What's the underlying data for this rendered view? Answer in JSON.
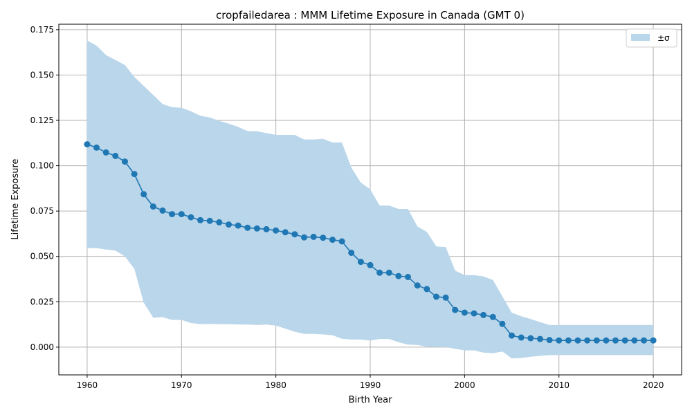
{
  "chart_data": {
    "type": "line",
    "title": "cropfailedarea : MMM Lifetime Exposure in Canada (GMT 0)",
    "xlabel": "Birth Year",
    "ylabel": "Lifetime Exposure",
    "xlim": [
      1957,
      2023
    ],
    "ylim": [
      -0.0153,
      0.178
    ],
    "x_ticks": [
      1960,
      1970,
      1980,
      1990,
      2000,
      2010,
      2020
    ],
    "x_tick_labels": [
      "1960",
      "1970",
      "1980",
      "1990",
      "2000",
      "2010",
      "2020"
    ],
    "y_ticks": [
      0.0,
      0.025,
      0.05,
      0.075,
      0.1,
      0.125,
      0.15,
      0.175
    ],
    "y_tick_labels": [
      "0.000",
      "0.025",
      "0.050",
      "0.075",
      "0.100",
      "0.125",
      "0.150",
      "0.175"
    ],
    "grid": true,
    "legend": {
      "placement": "top-right",
      "entries": [
        {
          "label": "±σ",
          "color": "#bad6ea"
        }
      ]
    },
    "colors": {
      "line": "#1f77b4",
      "band": "#bad6ea",
      "grid": "#b0b0b0"
    },
    "x": [
      1960,
      1961,
      1962,
      1963,
      1964,
      1965,
      1966,
      1967,
      1968,
      1969,
      1970,
      1971,
      1972,
      1973,
      1974,
      1975,
      1976,
      1977,
      1978,
      1979,
      1980,
      1981,
      1982,
      1983,
      1984,
      1985,
      1986,
      1987,
      1988,
      1989,
      1990,
      1991,
      1992,
      1993,
      1994,
      1995,
      1996,
      1997,
      1998,
      1999,
      2000,
      2001,
      2002,
      2003,
      2004,
      2005,
      2006,
      2007,
      2008,
      2009,
      2010,
      2011,
      2012,
      2013,
      2014,
      2015,
      2016,
      2017,
      2018,
      2019,
      2020
    ],
    "series": [
      {
        "values": [
          0.1118,
          0.11,
          0.1073,
          0.1054,
          0.1023,
          0.0954,
          0.0843,
          0.0775,
          0.0753,
          0.0733,
          0.0733,
          0.0716,
          0.07,
          0.0696,
          0.0688,
          0.0676,
          0.067,
          0.0658,
          0.0654,
          0.065,
          0.0643,
          0.0633,
          0.0622,
          0.0605,
          0.0608,
          0.0603,
          0.0592,
          0.0583,
          0.052,
          0.047,
          0.0452,
          0.041,
          0.041,
          0.0392,
          0.0387,
          0.034,
          0.032,
          0.0278,
          0.0273,
          0.0205,
          0.019,
          0.0186,
          0.0177,
          0.0166,
          0.0128,
          0.0064,
          0.0053,
          0.0049,
          0.0045,
          0.0039,
          0.0037,
          0.0037,
          0.0037,
          0.0037,
          0.0037,
          0.0037,
          0.0037,
          0.0037,
          0.0037,
          0.0037,
          0.0037
        ],
        "lower": [
          0.0546,
          0.0546,
          0.0538,
          0.0532,
          0.05,
          0.0432,
          0.0245,
          0.0162,
          0.0165,
          0.015,
          0.015,
          0.0133,
          0.0127,
          0.0128,
          0.0127,
          0.0126,
          0.0125,
          0.0124,
          0.0122,
          0.0124,
          0.0119,
          0.0102,
          0.0085,
          0.0073,
          0.0073,
          0.007,
          0.0065,
          0.0046,
          0.0042,
          0.0042,
          0.0036,
          0.0045,
          0.0045,
          0.0027,
          0.0014,
          0.0012,
          0.0002,
          0.0,
          0.0,
          -0.0009,
          -0.0018,
          -0.0018,
          -0.003,
          -0.0034,
          -0.0024,
          -0.0062,
          -0.006,
          -0.0053,
          -0.0048,
          -0.0044,
          -0.0044,
          -0.0044,
          -0.0044,
          -0.0044,
          -0.0044,
          -0.0044,
          -0.0044,
          -0.0044,
          -0.0044,
          -0.0044,
          -0.0044
        ],
        "upper": [
          0.169,
          0.1662,
          0.161,
          0.1583,
          0.1555,
          0.149,
          0.144,
          0.139,
          0.134,
          0.1322,
          0.132,
          0.13,
          0.1275,
          0.1266,
          0.1247,
          0.1232,
          0.1214,
          0.1191,
          0.119,
          0.118,
          0.117,
          0.117,
          0.117,
          0.1145,
          0.1145,
          0.1148,
          0.1128,
          0.1128,
          0.099,
          0.0907,
          0.087,
          0.078,
          0.078,
          0.0762,
          0.0762,
          0.0665,
          0.0635,
          0.0555,
          0.0552,
          0.0422,
          0.0397,
          0.0397,
          0.039,
          0.037,
          0.028,
          0.019,
          0.017,
          0.0155,
          0.0138,
          0.0122,
          0.0122,
          0.0122,
          0.0122,
          0.0122,
          0.0122,
          0.0122,
          0.0122,
          0.0122,
          0.0122,
          0.0122,
          0.0122
        ]
      }
    ]
  }
}
